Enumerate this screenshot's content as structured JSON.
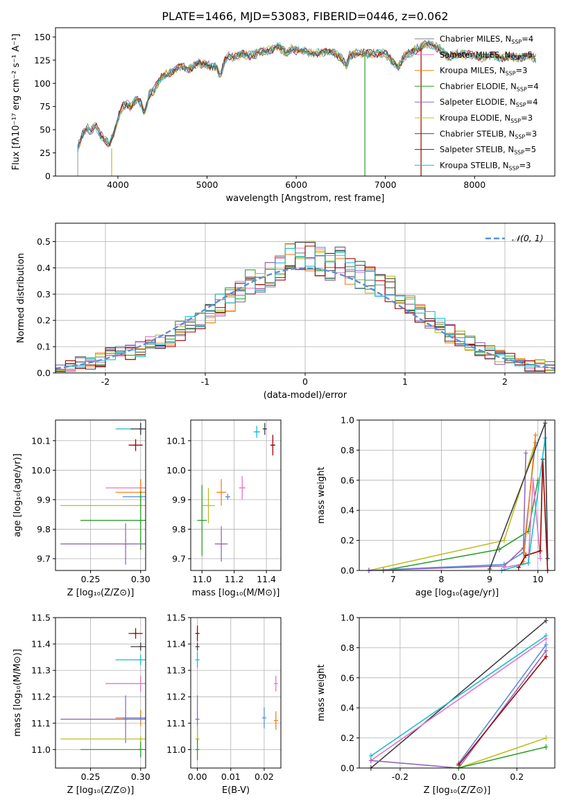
{
  "figure": {
    "title": "PLATE=1466, MJD=53083, FIBERID=0446, z=0.062"
  },
  "palette": {
    "chabrier_miles": "#7f7f7f",
    "salpeter_miles": "#e377c2",
    "kroupa_miles": "#ff7f0e",
    "chabrier_elodie": "#2ca02c",
    "salpeter_elodie": "#9467bd",
    "kroupa_elodie": "#bcbd22",
    "chabrier_stelib": "#404040",
    "salpeter_stelib": "#a00000",
    "kroupa_stelib": "#17becf",
    "normal_curve": "#5a8fd8"
  },
  "chart_data": [
    {
      "id": "spectrum",
      "type": "line",
      "title": "PLATE=1466, MJD=53083, FIBERID=0446, z=0.062",
      "xlabel": "wavelength [Angstrom, rest frame]",
      "ylabel": "Flux [fλ10⁻¹⁷ erg cm⁻² s⁻¹ A⁻¹]",
      "xlim": [
        3300,
        8900
      ],
      "ylim": [
        0,
        160
      ],
      "xticks": [
        4000,
        5000,
        6000,
        7000,
        8000
      ],
      "yticks": [
        0,
        25,
        50,
        75,
        100,
        125,
        150
      ],
      "grid": false,
      "legend_position": "top-right",
      "x": [
        3550,
        3600,
        3650,
        3700,
        3750,
        3800,
        3850,
        3900,
        3950,
        4000,
        4050,
        4100,
        4150,
        4200,
        4250,
        4300,
        4350,
        4400,
        4450,
        4500,
        4600,
        4700,
        4800,
        4900,
        5000,
        5100,
        5150,
        5200,
        5250,
        5300,
        5400,
        5500,
        5600,
        5700,
        5800,
        5890,
        5950,
        6000,
        6100,
        6200,
        6300,
        6400,
        6500,
        6563,
        6600,
        6700,
        6800,
        6900,
        7000,
        7100,
        7150,
        7200,
        7300,
        7400,
        7500,
        7600,
        7700,
        7800,
        7900,
        8000,
        8100,
        8200,
        8300,
        8400,
        8500,
        8600,
        8700
      ],
      "y": [
        30,
        45,
        52,
        48,
        55,
        45,
        40,
        34,
        44,
        62,
        75,
        78,
        74,
        82,
        80,
        68,
        88,
        92,
        100,
        108,
        112,
        118,
        116,
        122,
        120,
        118,
        108,
        125,
        130,
        128,
        132,
        130,
        134,
        136,
        140,
        132,
        138,
        136,
        134,
        132,
        134,
        135,
        128,
        118,
        130,
        133,
        132,
        133,
        132,
        122,
        118,
        128,
        134,
        140,
        143,
        138,
        128,
        132,
        131,
        130,
        128,
        131,
        127,
        129,
        128,
        130,
        126
      ],
      "series": [
        {
          "name": "Chabrier MILES, N_SSP=4",
          "color": "#7f7f7f"
        },
        {
          "name": "Salpeter MILES, N_SSP=5",
          "color": "#e377c2"
        },
        {
          "name": "Kroupa MILES, N_SSP=3",
          "color": "#ff7f0e"
        },
        {
          "name": "Chabrier ELODIE, N_SSP=4",
          "color": "#2ca02c"
        },
        {
          "name": "Salpeter ELODIE, N_SSP=4",
          "color": "#9467bd"
        },
        {
          "name": "Kroupa ELODIE, N_SSP=3",
          "color": "#bcbd22"
        },
        {
          "name": "Chabrier STELIB, N_SSP=3",
          "color": "#404040"
        },
        {
          "name": "Salpeter STELIB, N_SSP=5",
          "color": "#a00000"
        },
        {
          "name": "Kroupa STELIB, N_SSP=3",
          "color": "#17becf"
        }
      ],
      "legend": [
        {
          "label": "Chabrier MILES, N",
          "sub": "SSP",
          "suffix": "=4",
          "color": "#7f7f7f"
        },
        {
          "label": "Salpeter MILES, N",
          "sub": "SSP",
          "suffix": "=5",
          "color": "#e377c2"
        },
        {
          "label": "Kroupa MILES, N",
          "sub": "SSP",
          "suffix": "=3",
          "color": "#ff7f0e"
        },
        {
          "label": "Chabrier ELODIE, N",
          "sub": "SSP",
          "suffix": "=4",
          "color": "#2ca02c"
        },
        {
          "label": "Salpeter ELODIE, N",
          "sub": "SSP",
          "suffix": "=4",
          "color": "#9467bd"
        },
        {
          "label": "Kroupa ELODIE, N",
          "sub": "SSP",
          "suffix": "=3",
          "color": "#bcbd22"
        },
        {
          "label": "Chabrier STELIB, N",
          "sub": "SSP",
          "suffix": "=3",
          "color": "#404040"
        },
        {
          "label": "Salpeter STELIB, N",
          "sub": "SSP",
          "suffix": "=5",
          "color": "#a00000"
        },
        {
          "label": "Kroupa STELIB, N",
          "sub": "SSP",
          "suffix": "=3",
          "color": "#17becf"
        }
      ],
      "dropouts": [
        {
          "color": "#bcbd22",
          "x": 3930,
          "top": 30
        },
        {
          "color": "#2ca02c",
          "x": 6770,
          "top": 133
        },
        {
          "color": "#a00000",
          "x": 7400,
          "top": 138
        }
      ]
    },
    {
      "id": "residuals",
      "type": "line",
      "xlabel": "(data-model)/error",
      "ylabel": "Normed distribution",
      "xlim": [
        -2.5,
        2.5
      ],
      "ylim": [
        0,
        0.57
      ],
      "xticks": [
        -2,
        -1,
        0,
        1,
        2
      ],
      "yticks": [
        0.0,
        0.1,
        0.2,
        0.3,
        0.4,
        0.5
      ],
      "grid": true,
      "legend_position": "top-right",
      "legend": [
        {
          "label": "𝒩(0, 1)",
          "color": "#5a8fd8",
          "style": "dashed"
        }
      ],
      "bin_edges": [
        -2.5,
        -2.4,
        -2.3,
        -2.2,
        -2.1,
        -2.0,
        -1.9,
        -1.8,
        -1.7,
        -1.6,
        -1.5,
        -1.4,
        -1.3,
        -1.2,
        -1.1,
        -1.0,
        -0.9,
        -0.8,
        -0.7,
        -0.6,
        -0.5,
        -0.4,
        -0.3,
        -0.2,
        -0.1,
        0.0,
        0.1,
        0.2,
        0.3,
        0.4,
        0.5,
        0.6,
        0.7,
        0.8,
        0.9,
        1.0,
        1.1,
        1.2,
        1.3,
        1.4,
        1.5,
        1.6,
        1.7,
        1.8,
        1.9,
        2.0,
        2.1,
        2.2,
        2.3,
        2.4,
        2.5
      ],
      "mean_hist": [
        0.02,
        0.03,
        0.04,
        0.04,
        0.05,
        0.07,
        0.08,
        0.08,
        0.09,
        0.11,
        0.12,
        0.13,
        0.16,
        0.18,
        0.2,
        0.23,
        0.26,
        0.28,
        0.31,
        0.34,
        0.36,
        0.38,
        0.4,
        0.44,
        0.45,
        0.44,
        0.43,
        0.41,
        0.42,
        0.38,
        0.37,
        0.35,
        0.34,
        0.32,
        0.27,
        0.25,
        0.22,
        0.2,
        0.18,
        0.15,
        0.13,
        0.11,
        0.09,
        0.08,
        0.06,
        0.05,
        0.04,
        0.03,
        0.03,
        0.02
      ],
      "series": [
        {
          "color": "#7f7f7f"
        },
        {
          "color": "#e377c2"
        },
        {
          "color": "#ff7f0e"
        },
        {
          "color": "#2ca02c"
        },
        {
          "color": "#9467bd"
        },
        {
          "color": "#bcbd22"
        },
        {
          "color": "#404040"
        },
        {
          "color": "#a00000"
        },
        {
          "color": "#17becf"
        }
      ]
    },
    {
      "id": "age-vs-z",
      "type": "scatter",
      "xlabel": "Z [log₁₀(Z/Z⊙)]",
      "ylabel": "age  [log₁₀(age/yr)]",
      "xlim": [
        0.215,
        0.305
      ],
      "ylim": [
        9.66,
        10.17
      ],
      "xticks": [
        0.25,
        0.3
      ],
      "yticks": [
        9.7,
        9.8,
        9.9,
        10.0,
        10.1
      ],
      "grid": true,
      "points": [
        {
          "color": "#17becf",
          "x": 0.3,
          "y": 10.14,
          "xerr": 0.025,
          "yerr": 0.02
        },
        {
          "color": "#404040",
          "x": 0.3,
          "y": 10.14,
          "xerr": 0.01,
          "yerr": 0.02
        },
        {
          "color": "#a00000",
          "x": 0.295,
          "y": 10.085,
          "xerr": 0.007,
          "yerr": 0.02
        },
        {
          "color": "#e377c2",
          "x": 0.3,
          "y": 9.94,
          "xerr": 0.035,
          "yerr": 0.03
        },
        {
          "color": "#ff7f0e",
          "x": 0.3,
          "y": 9.925,
          "xerr": 0.025,
          "yerr": 0.045
        },
        {
          "color": "#5a8fd8",
          "x": 0.3,
          "y": 9.91,
          "xerr": 0.018,
          "yerr": 0.01
        },
        {
          "color": "#bcbd22",
          "x": 0.3,
          "y": 9.88,
          "xerr": 0.08,
          "yerr": 0.01
        },
        {
          "color": "#2ca02c",
          "x": 0.3,
          "y": 9.83,
          "xerr": 0.06,
          "yerr": 0.1
        },
        {
          "color": "#9467bd",
          "x": 0.285,
          "y": 9.75,
          "xerr": 0.065,
          "yerr": 0.07
        }
      ]
    },
    {
      "id": "age-vs-mass",
      "type": "scatter",
      "xlabel": "mass [log₁₀(M/M⊙)]",
      "ylabel": "",
      "xlim": [
        10.93,
        11.49
      ],
      "ylim": [
        9.66,
        10.17
      ],
      "xticks": [
        11.0,
        11.2,
        11.4
      ],
      "yticks": [
        9.7,
        9.8,
        9.9,
        10.0,
        10.1
      ],
      "grid": true,
      "points": [
        {
          "color": "#404040",
          "x": 11.39,
          "y": 10.14,
          "xerr": 0.01,
          "yerr": 0.02
        },
        {
          "color": "#17becf",
          "x": 11.34,
          "y": 10.13,
          "xerr": 0.02,
          "yerr": 0.02
        },
        {
          "color": "#a00000",
          "x": 11.44,
          "y": 10.085,
          "xerr": 0.015,
          "yerr": 0.035
        },
        {
          "color": "#e377c2",
          "x": 11.25,
          "y": 9.94,
          "xerr": 0.02,
          "yerr": 0.04
        },
        {
          "color": "#ff7f0e",
          "x": 11.12,
          "y": 9.925,
          "xerr": 0.03,
          "yerr": 0.045
        },
        {
          "color": "#5a8fd8",
          "x": 11.16,
          "y": 9.91,
          "xerr": 0.015,
          "yerr": 0.01
        },
        {
          "color": "#bcbd22",
          "x": 11.04,
          "y": 9.88,
          "xerr": 0.04,
          "yerr": 0.06
        },
        {
          "color": "#2ca02c",
          "x": 11.0,
          "y": 9.83,
          "xerr": 0.03,
          "yerr": 0.12
        },
        {
          "color": "#9467bd",
          "x": 11.12,
          "y": 9.75,
          "xerr": 0.04,
          "yerr": 0.06
        }
      ]
    },
    {
      "id": "weight-vs-age",
      "type": "line",
      "xlabel": "age  [log₁₀(age/yr)]",
      "ylabel": "mass weight",
      "xlim": [
        6.3,
        10.35
      ],
      "ylim": [
        0,
        1.0
      ],
      "xticks": [
        7,
        8,
        9,
        10
      ],
      "yticks": [
        0.0,
        0.2,
        0.4,
        0.6,
        0.8,
        1.0
      ],
      "grid": true,
      "series": [
        {
          "color": "#bcbd22",
          "x": [
            6.5,
            9.3,
            9.9
          ],
          "y": [
            0.0,
            0.2,
            0.8
          ]
        },
        {
          "color": "#2ca02c",
          "x": [
            6.8,
            9.2,
            9.8,
            10.0
          ],
          "y": [
            0.0,
            0.14,
            0.26,
            0.6
          ]
        },
        {
          "color": "#5a8fd8",
          "x": [
            6.5,
            9.3,
            9.7,
            9.95
          ],
          "y": [
            0.0,
            0.04,
            0.12,
            0.85
          ]
        },
        {
          "color": "#9467bd",
          "x": [
            6.5,
            9.3,
            9.7,
            9.75
          ],
          "y": [
            0.0,
            0.03,
            0.15,
            0.78
          ]
        },
        {
          "color": "#ff7f0e",
          "x": [
            9.6,
            9.7,
            9.95
          ],
          "y": [
            0.02,
            0.06,
            0.9
          ]
        },
        {
          "color": "#e377c2",
          "x": [
            9.3,
            9.8,
            9.9,
            10.05
          ],
          "y": [
            0.02,
            0.05,
            0.6,
            0.08
          ]
        },
        {
          "color": "#a00000",
          "x": [
            9.6,
            9.75,
            10.05,
            10.1,
            10.2
          ],
          "y": [
            0.02,
            0.1,
            0.13,
            0.74,
            0.0
          ]
        },
        {
          "color": "#17becf",
          "x": [
            9.25,
            9.8,
            10.15,
            10.2
          ],
          "y": [
            0.0,
            0.05,
            0.88,
            0.08
          ]
        },
        {
          "color": "#404040",
          "x": [
            9.0,
            10.15,
            10.2
          ],
          "y": [
            0.01,
            0.98,
            0.08
          ]
        }
      ]
    },
    {
      "id": "mass-vs-z",
      "type": "scatter",
      "xlabel": "Z [log₁₀(Z/Z⊙)]",
      "ylabel": "mass [log₁₀(M/M⊙)]",
      "xlim": [
        0.215,
        0.305
      ],
      "ylim": [
        10.93,
        11.5
      ],
      "xticks": [
        0.25,
        0.3
      ],
      "yticks": [
        11.0,
        11.1,
        11.2,
        11.3,
        11.4,
        11.5
      ],
      "grid": true,
      "points": [
        {
          "color": "#a00000",
          "x": 0.295,
          "y": 11.44,
          "xerr": 0.007,
          "yerr": 0.02
        },
        {
          "color": "#404040",
          "x": 0.3,
          "y": 11.39,
          "xerr": 0.01,
          "yerr": 0.015
        },
        {
          "color": "#17becf",
          "x": 0.3,
          "y": 11.34,
          "xerr": 0.025,
          "yerr": 0.02
        },
        {
          "color": "#e377c2",
          "x": 0.3,
          "y": 11.25,
          "xerr": 0.035,
          "yerr": 0.03
        },
        {
          "color": "#ff7f0e",
          "x": 0.3,
          "y": 11.12,
          "xerr": 0.025,
          "yerr": 0.03
        },
        {
          "color": "#9467bd",
          "x": 0.285,
          "y": 11.115,
          "xerr": 0.065,
          "yerr": 0.09
        },
        {
          "color": "#5a8fd8",
          "x": 0.3,
          "y": 11.12,
          "xerr": 0.018,
          "yerr": 0.01
        },
        {
          "color": "#bcbd22",
          "x": 0.3,
          "y": 11.04,
          "xerr": 0.08,
          "yerr": 0.01
        },
        {
          "color": "#2ca02c",
          "x": 0.3,
          "y": 11.0,
          "xerr": 0.06,
          "yerr": 0.03
        }
      ]
    },
    {
      "id": "mass-vs-ebv",
      "type": "scatter",
      "xlabel": "E(B-V)",
      "ylabel": "",
      "xlim": [
        -0.002,
        0.025
      ],
      "ylim": [
        10.93,
        11.5
      ],
      "xticks": [
        0.0,
        0.01,
        0.02
      ],
      "yticks": [
        11.0,
        11.1,
        11.2,
        11.3,
        11.4,
        11.5
      ],
      "grid": true,
      "points": [
        {
          "color": "#a00000",
          "x": 0.0,
          "y": 11.44,
          "xerr": 0,
          "yerr": 0.03
        },
        {
          "color": "#404040",
          "x": 0.0,
          "y": 11.39,
          "xerr": 0,
          "yerr": 0.015
        },
        {
          "color": "#17becf",
          "x": 0.0,
          "y": 11.34,
          "xerr": 0,
          "yerr": 0.03
        },
        {
          "color": "#e377c2",
          "x": 0.0235,
          "y": 11.25,
          "xerr": 0,
          "yerr": 0.03
        },
        {
          "color": "#ff7f0e",
          "x": 0.0235,
          "y": 11.11,
          "xerr": 0,
          "yerr": 0.035
        },
        {
          "color": "#9467bd",
          "x": 0.0,
          "y": 11.115,
          "xerr": 0,
          "yerr": 0.09
        },
        {
          "color": "#5a8fd8",
          "x": 0.02,
          "y": 11.12,
          "xerr": 0,
          "yerr": 0.04
        },
        {
          "color": "#bcbd22",
          "x": 0.0,
          "y": 11.04,
          "xerr": 0,
          "yerr": 0.05
        },
        {
          "color": "#2ca02c",
          "x": 0.0,
          "y": 11.0,
          "xerr": 0,
          "yerr": 0.04
        }
      ]
    },
    {
      "id": "weight-vs-z",
      "type": "line",
      "xlabel": "Z [log₁₀(Z/Z⊙)]",
      "ylabel": "mass weight",
      "xlim": [
        -0.34,
        0.33
      ],
      "ylim": [
        0,
        1.0
      ],
      "xticks": [
        -0.2,
        0.0,
        0.2
      ],
      "yticks": [
        0.0,
        0.2,
        0.4,
        0.6,
        0.8,
        1.0
      ],
      "grid": true,
      "series": [
        {
          "color": "#404040",
          "x": [
            -0.3,
            0.3
          ],
          "y": [
            0.0,
            0.98
          ]
        },
        {
          "color": "#17becf",
          "x": [
            -0.3,
            0.3
          ],
          "y": [
            0.08,
            0.88
          ]
        },
        {
          "color": "#e377c2",
          "x": [
            -0.3,
            0.3
          ],
          "y": [
            0.05,
            0.86
          ]
        },
        {
          "color": "#5a8fd8",
          "x": [
            0.0,
            0.3
          ],
          "y": [
            0.03,
            0.82
          ]
        },
        {
          "color": "#9467bd",
          "x": [
            -0.3,
            0.0,
            0.3
          ],
          "y": [
            0.05,
            0.0,
            0.78
          ]
        },
        {
          "color": "#a00000",
          "x": [
            0.0,
            0.3
          ],
          "y": [
            0.02,
            0.74
          ]
        },
        {
          "color": "#bcbd22",
          "x": [
            0.0,
            0.3
          ],
          "y": [
            0.0,
            0.2
          ]
        },
        {
          "color": "#2ca02c",
          "x": [
            0.0,
            0.3
          ],
          "y": [
            0.0,
            0.14
          ]
        }
      ]
    }
  ]
}
